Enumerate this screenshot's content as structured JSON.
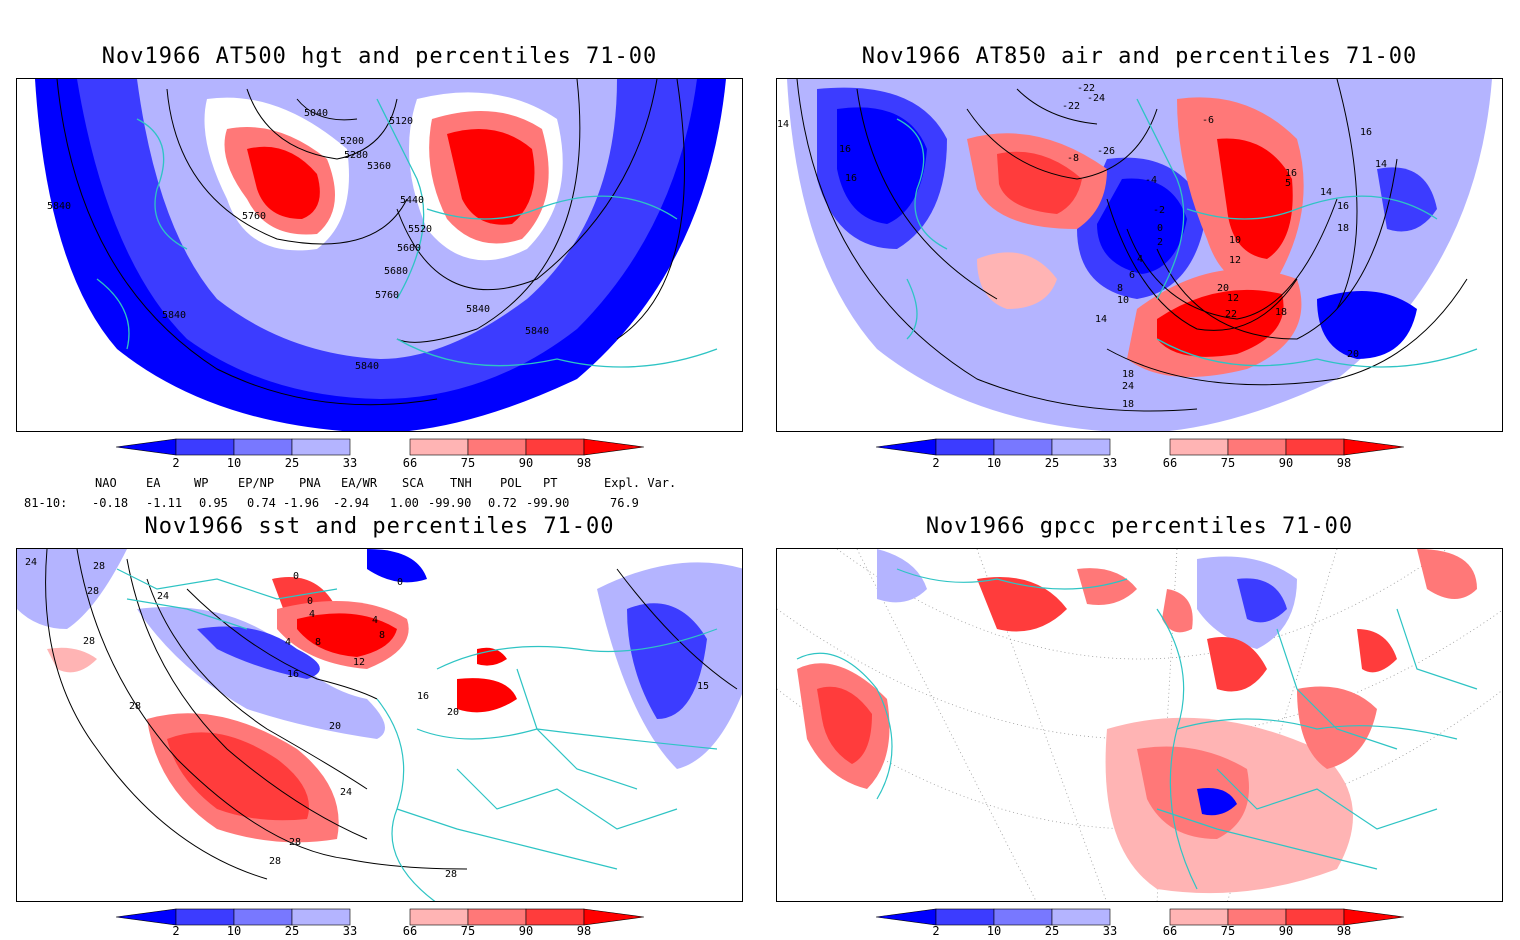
{
  "panels": [
    {
      "id": "p1",
      "title": "Nov1966 AT500 hgt and percentiles 71-00",
      "contour_labels": [
        "5040",
        "5120",
        "5200",
        "5280",
        "5360",
        "5440",
        "5520",
        "5600",
        "5680",
        "5760",
        "5760",
        "5840",
        "5840",
        "5840",
        "5840",
        "5840"
      ]
    },
    {
      "id": "p2",
      "title": "Nov1966 AT850 air and percentiles 71-00",
      "contour_labels": [
        "-22",
        "-24",
        "-26",
        "-22",
        "-8",
        "-6",
        "-4",
        "-2",
        "0",
        "2",
        "4",
        "6",
        "8",
        "10",
        "12",
        "14",
        "16",
        "16",
        "16",
        "14",
        "14",
        "16",
        "18",
        "20",
        "22",
        "24",
        "18",
        "20",
        "18",
        "16",
        "5",
        "10",
        "12",
        "18",
        "14"
      ]
    },
    {
      "id": "p3",
      "title": "Nov1966 sst and percentiles 71-00",
      "contour_labels": [
        "24",
        "28",
        "28",
        "24",
        "28",
        "0",
        "0",
        "0",
        "4",
        "4",
        "4",
        "8",
        "8",
        "12",
        "16",
        "16",
        "20",
        "20",
        "24",
        "28",
        "28",
        "28",
        "28",
        "15"
      ]
    },
    {
      "id": "p4",
      "title": "Nov1966 gpcc percentiles 71-00",
      "contour_labels": []
    }
  ],
  "colorbar": {
    "ticks": [
      "2",
      "10",
      "25",
      "33",
      "66",
      "75",
      "90",
      "98"
    ],
    "colors": {
      "blue_dark": "#0000ff",
      "blue_mid": "#3c3cff",
      "blue_light": "#7878ff",
      "blue_pale": "#b4b4ff",
      "red_pale": "#ffb4b4",
      "red_light": "#ff7878",
      "red_mid": "#ff3c3c",
      "red_dark": "#ff0000"
    }
  },
  "indices": {
    "header": [
      "NAO",
      "EA",
      "WP",
      "EP/NP",
      "PNA",
      "EA/WR",
      "SCA",
      "TNH",
      "POL",
      "PT",
      "Expl. Var."
    ],
    "row_label": "81-10:",
    "values": [
      "-0.18",
      "-1.11",
      "0.95",
      "0.74",
      "-1.96",
      "-2.94",
      "1.00",
      "-99.90",
      "0.72",
      "-99.90",
      "76.9"
    ]
  },
  "colors": {
    "coast": "#2ec4c4",
    "contour": "#000000"
  }
}
